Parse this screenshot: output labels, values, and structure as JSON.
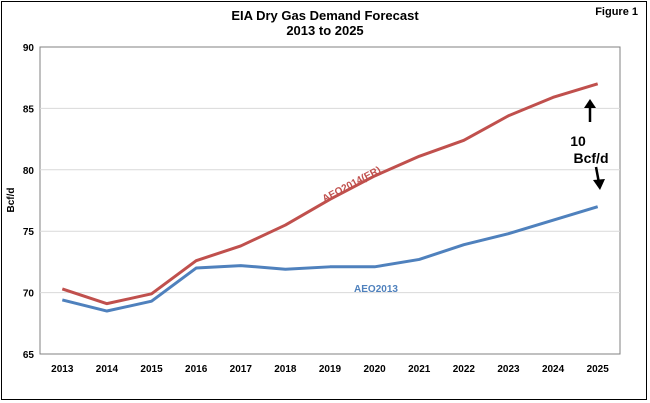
{
  "figure_label": "Figure 1",
  "chart_data": {
    "type": "line",
    "title": "EIA Dry Gas Demand Forecast",
    "subtitle": "2013 to 2025",
    "ylabel": "Bcf/d",
    "xlabel": "",
    "ylim": [
      65,
      90
    ],
    "yticks": [
      65,
      70,
      75,
      80,
      85,
      90
    ],
    "grid": true,
    "categories": [
      "2013",
      "2014",
      "2015",
      "2016",
      "2017",
      "2018",
      "2019",
      "2020",
      "2021",
      "2022",
      "2023",
      "2024",
      "2025"
    ],
    "series": [
      {
        "name": "AEO2014(ER)",
        "color": "#C0504D",
        "values": [
          70.3,
          69.1,
          69.9,
          72.6,
          73.8,
          75.5,
          77.6,
          79.5,
          81.1,
          82.4,
          84.4,
          85.9,
          87.0
        ]
      },
      {
        "name": "AEO2013",
        "color": "#4F81BD",
        "values": [
          69.4,
          68.5,
          69.3,
          72.0,
          72.2,
          71.9,
          72.1,
          72.1,
          72.7,
          73.9,
          74.8,
          75.9,
          77.0
        ]
      }
    ],
    "annotation": {
      "line1": "10",
      "line2": "Bcf/d"
    }
  }
}
